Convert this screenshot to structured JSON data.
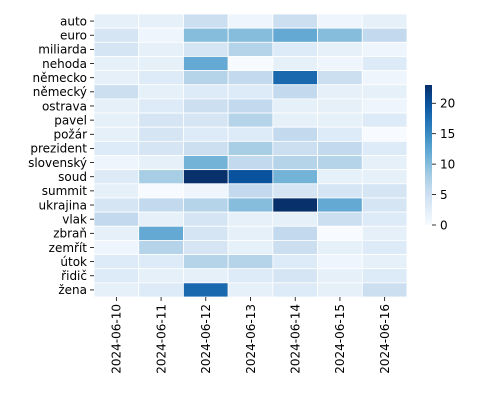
{
  "chart_data": {
    "type": "heatmap",
    "title": "",
    "xlabel": "",
    "ylabel": "",
    "x": [
      "2024-06-10",
      "2024-06-11",
      "2024-06-12",
      "2024-06-13",
      "2024-06-14",
      "2024-06-15",
      "2024-06-16"
    ],
    "y": [
      "auto",
      "euro",
      "miliarda",
      "nehoda",
      "německo",
      "německý",
      "ostrava",
      "pavel",
      "požár",
      "prezident",
      "slovenský",
      "soud",
      "summit",
      "ukrajina",
      "vlak",
      "zbraň",
      "zemřít",
      "útok",
      "řidič",
      "žena"
    ],
    "values": [
      [
        2,
        2,
        5,
        1,
        5,
        1,
        2
      ],
      [
        4,
        1,
        10,
        10,
        12,
        10,
        6
      ],
      [
        4,
        2,
        4,
        7,
        3,
        2,
        1
      ],
      [
        2,
        2,
        12,
        0,
        2,
        1,
        3
      ],
      [
        2,
        3,
        7,
        6,
        18,
        5,
        1
      ],
      [
        5,
        2,
        3,
        3,
        6,
        2,
        2
      ],
      [
        2,
        3,
        5,
        6,
        2,
        2,
        1
      ],
      [
        2,
        4,
        4,
        7,
        2,
        2,
        3
      ],
      [
        2,
        4,
        3,
        3,
        6,
        3,
        0
      ],
      [
        3,
        4,
        5,
        8,
        5,
        6,
        3
      ],
      [
        1,
        2,
        11,
        6,
        7,
        7,
        2
      ],
      [
        3,
        8,
        23,
        20,
        11,
        2,
        2
      ],
      [
        2,
        0,
        1,
        6,
        4,
        4,
        4
      ],
      [
        4,
        6,
        7,
        10,
        23,
        12,
        4
      ],
      [
        6,
        2,
        4,
        2,
        2,
        5,
        3
      ],
      [
        2,
        12,
        4,
        2,
        6,
        0,
        2
      ],
      [
        1,
        7,
        4,
        2,
        5,
        2,
        3
      ],
      [
        3,
        3,
        7,
        7,
        3,
        1,
        2
      ],
      [
        3,
        2,
        2,
        3,
        4,
        2,
        3
      ],
      [
        2,
        3,
        18,
        2,
        3,
        2,
        5
      ]
    ],
    "vmin": 0,
    "vmax": 23,
    "colormap": "Blues",
    "colorbar": {
      "ticks": [
        0,
        5,
        10,
        15,
        20
      ]
    },
    "grid_line_color": "#ffffff"
  }
}
